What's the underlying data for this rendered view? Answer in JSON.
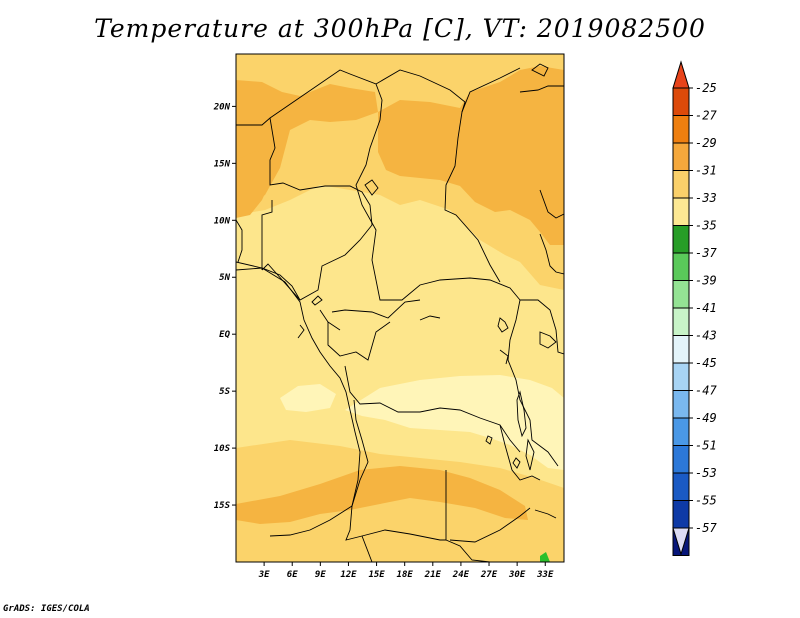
{
  "title": "Temperature at 300hPa [C], VT: 2019082500",
  "footer": "GrADS: IGES/COLA",
  "map": {
    "lat_labels": [
      "20N",
      "15N",
      "10N",
      "5N",
      "EQ",
      "5S",
      "10S",
      "15S"
    ],
    "lat_values": [
      20,
      15,
      10,
      5,
      0,
      -5,
      -10,
      -15
    ],
    "lon_labels": [
      "3E",
      "6E",
      "9E",
      "12E",
      "15E",
      "18E",
      "21E",
      "24E",
      "27E",
      "30E",
      "33E"
    ],
    "lon_values": [
      3,
      6,
      9,
      12,
      15,
      18,
      21,
      24,
      27,
      30,
      33
    ]
  },
  "colorbar": {
    "labels": [
      "-25",
      "-27",
      "-29",
      "-31",
      "-33",
      "-35",
      "-37",
      "-39",
      "-41",
      "-43",
      "-45",
      "-47",
      "-49",
      "-51",
      "-53",
      "-55",
      "-57"
    ],
    "colors": [
      "#dc4a0a",
      "#ee7f10",
      "#f5a83c",
      "#fad06a",
      "#fde893",
      "#279d27",
      "#5ac95a",
      "#94e394",
      "#c8f4c8",
      "#e4f4fa",
      "#a8d4f4",
      "#7ab8ef",
      "#4a98e6",
      "#2c78d8",
      "#1a5ac4",
      "#0e3aa6",
      "#07167a"
    ],
    "top_color": "#e8431a",
    "bottom_color": "#dcdcf4"
  },
  "field_colors": {
    "t29": "#f5b441",
    "t31": "#fbd36a",
    "t33": "#fde68c",
    "t35": "#fff5b8",
    "land_green": "#2bbf2b"
  }
}
